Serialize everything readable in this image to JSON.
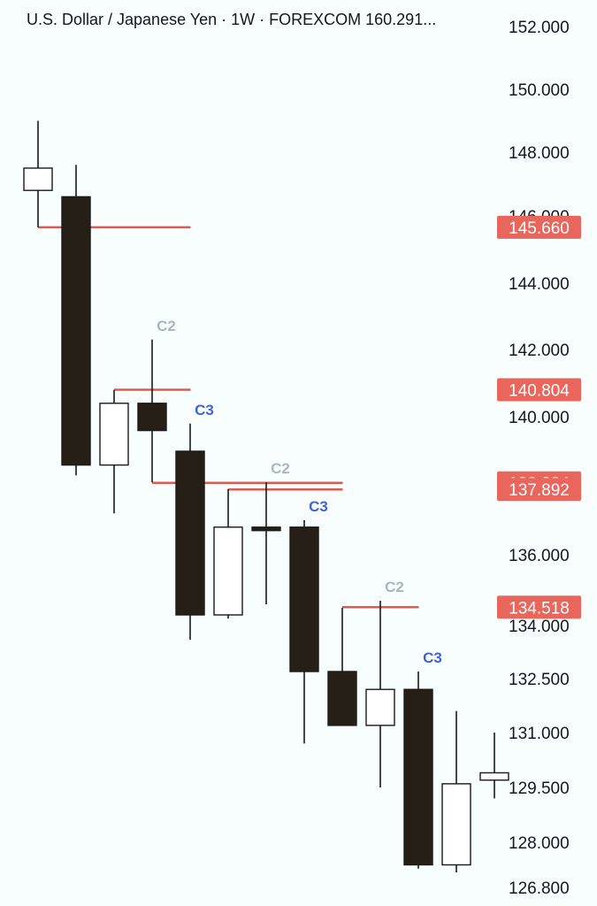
{
  "header": {
    "title": "U.S. Dollar / Japanese Yen · 1W · FOREXCOM  160.291..."
  },
  "colors": {
    "background": "#f8fdfd",
    "bear_body": "#261f17",
    "bull_body": "#ffffff",
    "wick": "#1a1a1a",
    "level_line": "#e05a52",
    "level_badge": "#e9665d",
    "label_c2": "#a9b6c2",
    "label_c3": "#3f63d6",
    "axis_text": "#131722"
  },
  "chart_data": {
    "type": "candlestick",
    "timeframe": "1W",
    "y_scale": "non-linear (ticks spaced unevenly)",
    "yticks": [
      {
        "value": 152,
        "label": "152.000"
      },
      {
        "value": 150,
        "label": "150.000"
      },
      {
        "value": 148,
        "label": "148.000"
      },
      {
        "value": 146,
        "label": "146.000"
      },
      {
        "value": 144,
        "label": "144.000"
      },
      {
        "value": 142,
        "label": "142.000"
      },
      {
        "value": 140,
        "label": "140.000"
      },
      {
        "value": 136,
        "label": "136.000"
      },
      {
        "value": 134,
        "label": "134.000"
      },
      {
        "value": 132.5,
        "label": "132.500"
      },
      {
        "value": 131,
        "label": "131.000"
      },
      {
        "value": 129.5,
        "label": "129.500"
      },
      {
        "value": 128,
        "label": "128.000"
      },
      {
        "value": 126.8,
        "label": "126.800"
      }
    ],
    "candles": [
      {
        "open": 146.8,
        "high": 149.0,
        "low": 145.66,
        "close": 147.5
      },
      {
        "open": 146.6,
        "high": 147.6,
        "low": 138.3,
        "close": 138.6
      },
      {
        "open": 138.6,
        "high": 140.8,
        "low": 137.2,
        "close": 140.4
      },
      {
        "open": 140.4,
        "high": 142.3,
        "low": 138.1,
        "close": 139.6
      },
      {
        "open": 139.0,
        "high": 139.8,
        "low": 133.6,
        "close": 134.3
      },
      {
        "open": 134.3,
        "high": 137.9,
        "low": 134.2,
        "close": 136.8
      },
      {
        "open": 136.8,
        "high": 138.1,
        "low": 134.6,
        "close": 136.7
      },
      {
        "open": 136.8,
        "high": 137.0,
        "low": 130.7,
        "close": 132.7
      },
      {
        "open": 132.7,
        "high": 134.5,
        "low": 131.3,
        "close": 131.2
      },
      {
        "open": 131.2,
        "high": 134.7,
        "low": 129.5,
        "close": 132.2
      },
      {
        "open": 132.2,
        "high": 132.7,
        "low": 127.3,
        "close": 127.4
      },
      {
        "open": 127.4,
        "high": 131.6,
        "low": 127.2,
        "close": 129.6
      },
      {
        "open": 129.7,
        "high": 131.0,
        "low": 129.2,
        "close": 129.9
      }
    ],
    "levels": [
      {
        "value": 145.66,
        "label": "145.660",
        "from_candle": 0,
        "to_candle": 4
      },
      {
        "value": 140.804,
        "label": "140.804",
        "from_candle": 2,
        "to_candle": 4
      },
      {
        "value": 138.084,
        "label": "138.084",
        "from_candle": 3,
        "to_candle": 8
      },
      {
        "value": 137.892,
        "label": "137.892",
        "from_candle": 5,
        "to_candle": 8
      },
      {
        "value": 134.518,
        "label": "134.518",
        "from_candle": 8,
        "to_candle": 10
      }
    ],
    "annotations": [
      {
        "text": "C2",
        "candle": 3,
        "kind": "c2"
      },
      {
        "text": "C3",
        "candle": 4,
        "kind": "c3"
      },
      {
        "text": "C2",
        "candle": 6,
        "kind": "c2"
      },
      {
        "text": "C3",
        "candle": 7,
        "kind": "c3"
      },
      {
        "text": "C2",
        "candle": 9,
        "kind": "c2"
      },
      {
        "text": "C3",
        "candle": 10,
        "kind": "c3"
      }
    ]
  }
}
